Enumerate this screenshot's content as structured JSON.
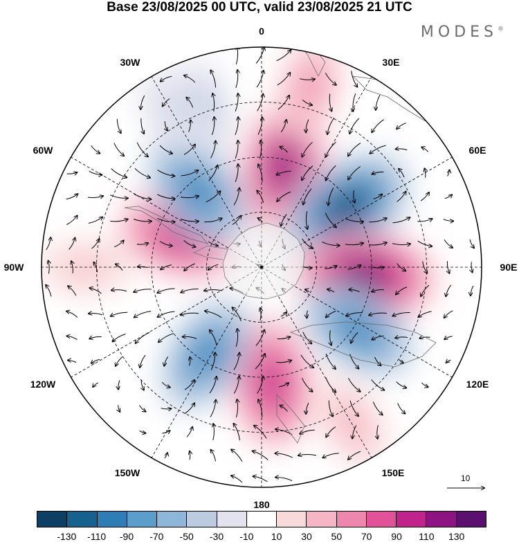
{
  "title": "Base 23/08/2025 00 UTC, valid 23/08/2025 21 UTC",
  "brand": "MODES",
  "brand_mark": "®",
  "longitude_labels": {
    "lon_0": "0",
    "lon_30e": "30E",
    "lon_60e": "60E",
    "lon_90e": "90E",
    "lon_120e": "120E",
    "lon_150e": "150E",
    "lon_180": "180",
    "lon_150w": "150W",
    "lon_120w": "120W",
    "lon_90w": "90W",
    "lon_60w": "60W",
    "lon_30w": "30W"
  },
  "reference_vector": {
    "label": "10"
  },
  "colorbar": {
    "colors": [
      "#0c3f63",
      "#17618f",
      "#2e7db7",
      "#5b9ecb",
      "#8eb6d9",
      "#bccbe0",
      "#e3e3ee",
      "#ffffff",
      "#f9dada",
      "#f5b5c4",
      "#ee86ad",
      "#e15298",
      "#c0238b",
      "#8f1483",
      "#5b0f6e"
    ],
    "labels": [
      "-130",
      "-110",
      "-90",
      "-70",
      "-50",
      "-30",
      "-10",
      "10",
      "30",
      "50",
      "70",
      "90",
      "110",
      "130"
    ]
  },
  "anomalies": [
    {
      "lon": 12,
      "lat_frac": 0.47,
      "value": 115
    },
    {
      "lon": 55,
      "lat_frac": 0.47,
      "value": -130
    },
    {
      "lon": 95,
      "lat_frac": 0.47,
      "value": 135
    },
    {
      "lon": 123,
      "lat_frac": 0.52,
      "value": -95
    },
    {
      "lon": 175,
      "lat_frac": 0.53,
      "value": 105
    },
    {
      "lon": 212,
      "lat_frac": 0.47,
      "value": -90
    },
    {
      "lon": 290,
      "lat_frac": 0.4,
      "value": 95
    },
    {
      "lon": 320,
      "lat_frac": 0.45,
      "value": -100
    },
    {
      "lon": 15,
      "lat_frac": 0.85,
      "value": 55
    },
    {
      "lon": 150,
      "lat_frac": 0.82,
      "value": 45
    },
    {
      "lon": 270,
      "lat_frac": 0.8,
      "value": 35
    },
    {
      "lon": 340,
      "lat_frac": 0.78,
      "value": -40
    },
    {
      "lon": 330,
      "lat_frac": 0.82,
      "value": -30
    }
  ]
}
